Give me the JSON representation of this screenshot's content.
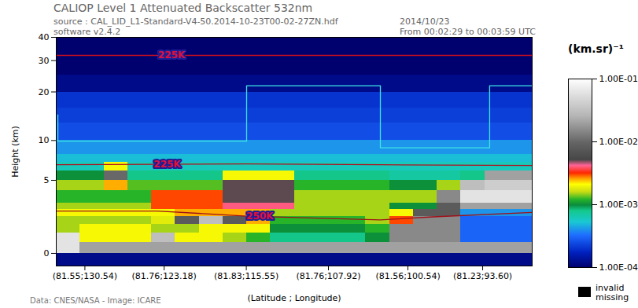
{
  "chart_data": {
    "type": "heatmap",
    "title": "CALIOP Level 1 Attenuated Backscatter 532nm",
    "header_left": [
      "source : CAL_LID_L1-Standard-V4-50.2014-10-23T00-02-27ZN.hdf",
      "software v2.4.2"
    ],
    "header_right": [
      "2014/10/23",
      "From 00:02:29 to 00:03:59 UTC"
    ],
    "caption": "Data: CNES/NASA - Image: ICARE",
    "x_label": "(Latitude ; Longitude)",
    "y_label": "Height (km)",
    "xlim": [
      133.2,
      89.0
    ],
    "xticks": [
      {
        "value": 130.54,
        "label": "(81.55;130.54)"
      },
      {
        "value": 123.18,
        "label": "(81.76;123.18)"
      },
      {
        "value": 115.55,
        "label": "(81.83;115.55)"
      },
      {
        "value": 107.92,
        "label": "(81.76;107.92)"
      },
      {
        "value": 100.54,
        "label": "(81.56;100.54)"
      },
      {
        "value": 93.6,
        "label": "(81.23;93.60)"
      }
    ],
    "ylim": [
      -0.6,
      40
    ],
    "yticks": [
      0,
      5,
      10,
      20,
      30,
      40
    ],
    "cells": {
      "lon_edges": [
        133.2,
        130.99,
        128.78,
        126.57,
        124.36,
        122.15,
        119.94,
        117.73,
        115.52,
        113.31,
        111.1,
        108.89,
        106.68,
        104.47,
        102.26,
        100.05,
        97.84,
        95.63,
        93.42,
        91.21,
        89.0
      ],
      "height_edges": [
        -0.6,
        0,
        0.5,
        1,
        1.5,
        2,
        2.5,
        3,
        4,
        5,
        6,
        7,
        8,
        10,
        13,
        16,
        20,
        25,
        30,
        40
      ],
      "values": [
        [
          0.00012,
          0.00012,
          0.00012,
          0.00012,
          0.00012,
          0.00012,
          0.00012,
          0.00012,
          0.00012,
          0.00012,
          0.00012,
          0.00012,
          0.00012,
          0.00012,
          0.00012,
          0.00012,
          0.00012,
          0.00012,
          0.00012,
          0.00012
        ],
        [
          0.06,
          0.02,
          0.02,
          0.02,
          0.02,
          0.02,
          0.02,
          0.02,
          0.02,
          0.02,
          0.02,
          0.02,
          0.02,
          0.02,
          0.02,
          0.02,
          0.02,
          0.02,
          0.02,
          0.02
        ],
        [
          0.06,
          0.002,
          0.002,
          0.002,
          0.03,
          0.002,
          0.002,
          0.0015,
          0.0012,
          0.0008,
          0.0008,
          0.0008,
          0.0008,
          0.001,
          0.015,
          0.015,
          0.015,
          0.0003,
          0.0003,
          0.0003
        ],
        [
          0.0015,
          0.002,
          0.002,
          0.002,
          0.0015,
          0.0015,
          0.002,
          0.002,
          0.002,
          0.001,
          0.001,
          0.001,
          0.001,
          0.0012,
          0.015,
          0.015,
          0.015,
          0.0003,
          0.0003,
          0.0003
        ],
        [
          0.0015,
          0.0015,
          0.0015,
          0.0015,
          0.0018,
          0.008,
          0.03,
          0.008,
          0.0025,
          0.0012,
          0.0012,
          0.0012,
          0.0012,
          0.0015,
          0.003,
          0.015,
          0.015,
          0.0003,
          0.0003,
          0.0003
        ],
        [
          0.002,
          0.002,
          0.002,
          0.002,
          0.002,
          0.0025,
          0.0025,
          0.0025,
          0.0025,
          0.0015,
          0.0015,
          0.0015,
          0.0015,
          0.0015,
          0.002,
          0.008,
          0.008,
          0.0004,
          0.0004,
          0.0004
        ],
        [
          0.0015,
          0.0015,
          0.0015,
          0.0015,
          0.003,
          0.003,
          0.003,
          0.004,
          0.004,
          0.004,
          0.0015,
          0.0015,
          0.0015,
          0.0015,
          0.001,
          0.001,
          0.008,
          0.02,
          0.02,
          0.02
        ],
        [
          0.0012,
          0.0012,
          0.0012,
          0.0012,
          0.003,
          0.003,
          0.003,
          0.005,
          0.005,
          0.005,
          0.0015,
          0.0015,
          0.0015,
          0.0015,
          0.0015,
          0.0015,
          0.015,
          0.06,
          0.06,
          0.06
        ],
        [
          0.0015,
          0.0015,
          0.0025,
          0.0013,
          0.0013,
          0.0013,
          0.0013,
          0.005,
          0.005,
          0.005,
          0.0012,
          0.0012,
          0.0012,
          0.0012,
          0.001,
          0.001,
          0.0015,
          0.03,
          0.04,
          0.04
        ],
        [
          0.001,
          0.001,
          0.01,
          0.0008,
          0.0008,
          0.0008,
          0.0008,
          0.002,
          0.002,
          0.002,
          0.0008,
          0.0008,
          0.0008,
          0.0008,
          0.0007,
          0.0007,
          0.0007,
          0.0008,
          0.02,
          0.02
        ],
        [
          0.0006,
          0.0006,
          0.002,
          0.0006,
          0.0006,
          0.0006,
          0.0006,
          0.0006,
          0.0006,
          0.0006,
          0.0006,
          0.0006,
          0.0006,
          0.0006,
          0.0006,
          0.0006,
          0.0006,
          0.0006,
          0.0006,
          0.0006
        ],
        [
          0.0005,
          0.0005,
          0.0005,
          0.0005,
          0.0005,
          0.0005,
          0.0005,
          0.0005,
          0.0005,
          0.0005,
          0.0005,
          0.0005,
          0.0005,
          0.0005,
          0.0005,
          0.0005,
          0.0005,
          0.0005,
          0.0005,
          0.0005
        ],
        [
          0.0004,
          0.0004,
          0.0004,
          0.0004,
          0.0004,
          0.0004,
          0.0004,
          0.0004,
          0.0004,
          0.0004,
          0.0004,
          0.0004,
          0.0004,
          0.0004,
          0.0004,
          0.0004,
          0.0004,
          0.0004,
          0.0004,
          0.0004
        ],
        [
          0.00025,
          0.00025,
          0.00025,
          0.00025,
          0.00025,
          0.00025,
          0.00025,
          0.00025,
          0.00025,
          0.00025,
          0.00025,
          0.00025,
          0.00025,
          0.00025,
          0.00025,
          0.00025,
          0.00025,
          0.00025,
          0.00025,
          0.00025
        ],
        [
          0.00022,
          0.00022,
          0.00022,
          0.00022,
          0.00022,
          0.00022,
          0.00022,
          0.00022,
          0.00022,
          0.00022,
          0.00022,
          0.00022,
          0.00022,
          0.00022,
          0.00022,
          0.00022,
          0.00022,
          0.00022,
          0.00022,
          0.00022
        ],
        [
          0.0002,
          0.0002,
          0.0002,
          0.0002,
          0.0002,
          0.0002,
          0.0002,
          0.0002,
          0.0002,
          0.0002,
          0.0002,
          0.0002,
          0.0002,
          0.0002,
          0.0002,
          0.0002,
          0.0002,
          0.0002,
          0.0002,
          0.0002
        ],
        [
          0.00012,
          0.00012,
          0.00012,
          0.00012,
          0.00012,
          0.00012,
          0.00012,
          0.00012,
          0.00012,
          0.00012,
          0.00012,
          0.00012,
          0.00012,
          0.00012,
          0.00012,
          0.00012,
          0.00012,
          0.00012,
          0.00012,
          0.00012
        ],
        [
          0.0001,
          0.0001,
          0.0001,
          0.0001,
          0.0001,
          0.0001,
          0.0001,
          0.0001,
          0.0001,
          0.0001,
          0.0001,
          0.0001,
          0.0001,
          0.0001,
          0.0001,
          0.0001,
          0.0001,
          0.0001,
          0.0001,
          0.0001
        ],
        [
          0.0001,
          0.0001,
          0.0001,
          0.0001,
          0.0001,
          0.0001,
          0.0001,
          0.0001,
          0.0001,
          0.0001,
          0.0001,
          0.0001,
          0.0001,
          0.0001,
          0.0001,
          0.0001,
          0.0001,
          0.0001,
          0.0001,
          0.0001
        ]
      ]
    },
    "series": [
      {
        "name": "225K",
        "color": "#cc1020",
        "x": [
          133.2,
          89.0
        ],
        "values": [
          32,
          32
        ],
        "label_lon": 122.5
      },
      {
        "name": "225K",
        "color": "#b01020",
        "x": [
          133.2,
          115.5,
          103.1,
          89.0
        ],
        "values": [
          6.7,
          6.8,
          6.7,
          6.6
        ],
        "label_lon": 122.9
      },
      {
        "name": "250K",
        "color": "#a01018",
        "x": [
          133.2,
          123.8,
          115.5,
          103.1,
          98.2,
          89.0
        ],
        "values": [
          2.4,
          2.4,
          2.05,
          1.8,
          2.0,
          2.3
        ],
        "label_lon": 114.3
      }
    ],
    "resolution_boundary": {
      "color": "#3ce6e6",
      "x": [
        133.05,
        133.05,
        115.52,
        115.52,
        103.1,
        103.1,
        92.95,
        92.95,
        89.0
      ],
      "values": [
        14.6,
        9.9,
        9.9,
        21.7,
        21.7,
        8.9,
        8.9,
        21.7,
        21.7
      ]
    },
    "colorbar": {
      "label": "(km.sr)⁻¹",
      "range": [
        0.0001,
        0.1
      ],
      "ticks": [
        {
          "value": 0.1,
          "label": "1.00E-01"
        },
        {
          "value": 0.01,
          "label": "1.00E-02"
        },
        {
          "value": 0.001,
          "label": "1.00E-03"
        },
        {
          "value": 0.0001,
          "label": "1.00E-04"
        }
      ],
      "missing": [
        "invalid",
        "missing"
      ]
    }
  }
}
